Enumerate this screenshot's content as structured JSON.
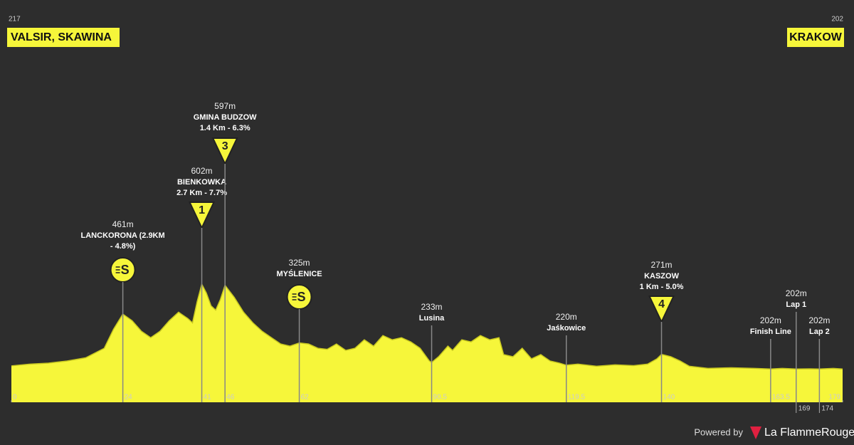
{
  "chart_data": {
    "type": "area",
    "color": "#f6f63a",
    "start": {
      "elevation": 217,
      "name": "VALSIR, SKAWINA"
    },
    "finish": {
      "elevation": 202,
      "name": "KRAKOW"
    },
    "x": [
      0,
      4,
      8,
      12,
      16,
      20,
      22,
      24,
      26,
      28,
      30,
      32,
      34,
      36,
      38,
      39,
      40,
      41,
      42,
      43,
      44,
      45,
      46,
      48,
      50,
      52,
      54,
      56,
      58,
      60,
      62,
      64,
      66,
      68,
      70,
      72,
      74,
      76,
      78,
      80,
      82,
      84,
      86,
      88,
      90,
      90.5,
      92,
      94,
      95,
      97,
      99,
      101,
      103,
      105,
      106,
      108,
      110,
      112,
      114,
      116,
      118,
      119.5,
      122,
      126,
      130,
      134,
      137,
      139,
      140,
      142,
      144,
      146,
      150,
      155,
      160,
      163.5,
      166,
      169,
      172,
      174,
      177,
      179
    ],
    "values": [
      217,
      225,
      230,
      240,
      255,
      300,
      390,
      461,
      430,
      380,
      350,
      380,
      430,
      470,
      440,
      420,
      520,
      602,
      560,
      500,
      480,
      530,
      597,
      540,
      470,
      420,
      380,
      350,
      320,
      310,
      325,
      320,
      300,
      295,
      320,
      290,
      300,
      340,
      310,
      360,
      340,
      350,
      330,
      300,
      240,
      233,
      260,
      310,
      290,
      340,
      330,
      360,
      340,
      350,
      270,
      260,
      300,
      250,
      270,
      240,
      230,
      220,
      225,
      215,
      222,
      218,
      225,
      250,
      271,
      260,
      240,
      215,
      205,
      208,
      205,
      202,
      205,
      202,
      203,
      202,
      205,
      202
    ],
    "xlim": [
      0,
      179
    ],
    "ylim": [
      45,
      1725
    ],
    "xticks": [
      0,
      24,
      41,
      46,
      62,
      90.5,
      119.5,
      140,
      163.5,
      169,
      174,
      179
    ],
    "markers": [
      {
        "km": 24,
        "elevation": 461,
        "label": "461m",
        "name": "LANCKORONA (2.9KM",
        "detail": "- 4.8%)",
        "icon": {
          "shape": "circle",
          "text": "S"
        }
      },
      {
        "km": 41,
        "elevation": 602,
        "label": "602m",
        "name": "BIENKOWKA",
        "detail": "2.7 Km - 7.7%",
        "icon": {
          "shape": "triangle",
          "text": "1"
        }
      },
      {
        "km": 46,
        "elevation": 597,
        "label": "597m",
        "name": "GMINA BUDZOW",
        "detail": "1.4 Km - 6.3%",
        "icon": {
          "shape": "triangle",
          "text": "3"
        }
      },
      {
        "km": 62,
        "elevation": 325,
        "label": "325m",
        "name": "MYŚLENICE",
        "icon": {
          "shape": "circle",
          "text": "S"
        }
      },
      {
        "km": 90.5,
        "elevation": 233,
        "label": "233m",
        "name": "Lusina"
      },
      {
        "km": 119.5,
        "elevation": 220,
        "label": "220m",
        "name": "Jaśkowice"
      },
      {
        "km": 140,
        "elevation": 271,
        "label": "271m",
        "name": "KASZOW",
        "detail": "1 Km - 5.0%",
        "icon": {
          "shape": "triangle",
          "text": "4"
        }
      },
      {
        "km": 163.5,
        "elevation": 202,
        "label": "202m",
        "name": "Finish Line"
      },
      {
        "km": 169,
        "elevation": 202,
        "label": "202m",
        "name": "Lap 1"
      },
      {
        "km": 174,
        "elevation": 202,
        "label": "202m",
        "name": "Lap 2"
      }
    ]
  },
  "footer": {
    "powered": "Powered by",
    "brand": "La FlammeRouge"
  }
}
